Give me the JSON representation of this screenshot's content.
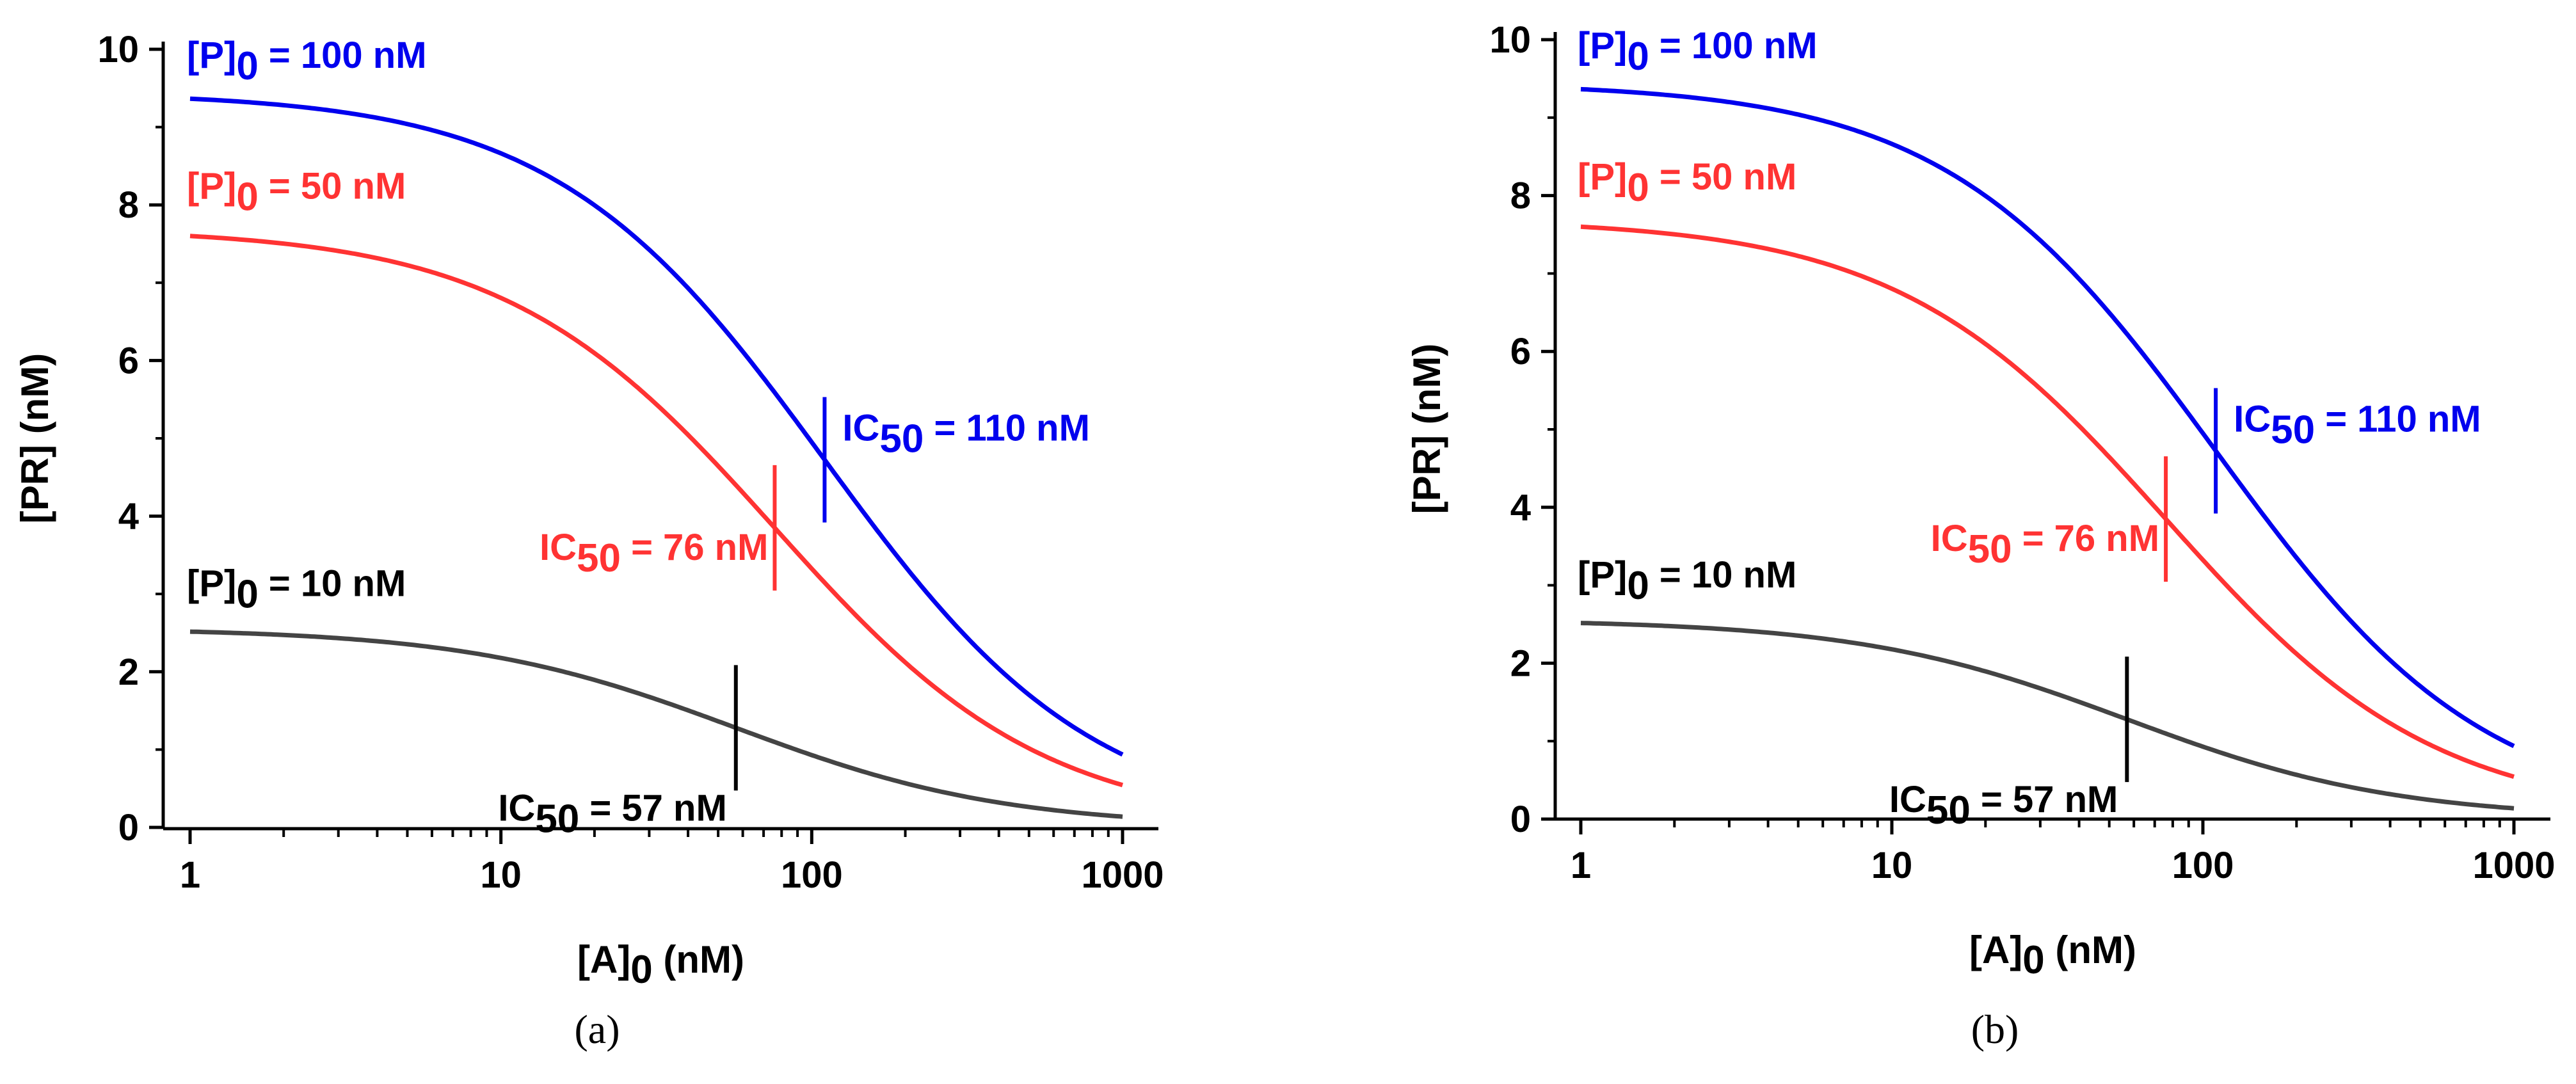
{
  "colors": {
    "p100": "#0000ee",
    "p50": "#ff3333",
    "p10": "#444444",
    "axis": "#000000"
  },
  "chart_data": [
    {
      "type": "line",
      "panel": "(a)",
      "xlabel": "[A]0 (nM)",
      "ylabel": "[PR] (nM)",
      "xscale": "log",
      "xlim": [
        0.85,
        1050
      ],
      "ylim": [
        0,
        10
      ],
      "xticks": [
        1,
        10,
        100,
        1000
      ],
      "xtick_labels": [
        "1",
        "10",
        "100",
        "1000"
      ],
      "yticks": [
        0,
        2,
        4,
        6,
        8,
        10
      ],
      "ytick_labels": [
        "0",
        "2",
        "4",
        "6",
        "8",
        "10"
      ],
      "series": [
        {
          "name": "[P]0 = 100 nM",
          "label_main": "[P]",
          "label_sub": "0",
          "label_rest": " = 100 nM",
          "color": "#0000ee",
          "top": 9.45,
          "ic50": 110,
          "ic50_label": "IC50 = 110 nM",
          "ic_main": "IC",
          "ic_sub": "50",
          "ic_rest": " = 110 nM",
          "label_anchor": "top-left",
          "ic_label_side": "right"
        },
        {
          "name": "[P]0 = 50 nM",
          "label_main": "[P]",
          "label_sub": "0",
          "label_rest": " = 50 nM",
          "color": "#ff3333",
          "top": 7.7,
          "ic50": 76,
          "ic50_label": "IC50 = 76 nM",
          "ic_main": "IC",
          "ic_sub": "50",
          "ic_rest": " = 76 nM",
          "label_anchor": "upper-left",
          "ic_label_side": "left"
        },
        {
          "name": "[P]0 = 10 nM",
          "label_main": "[P]",
          "label_sub": "0",
          "label_rest": " = 10 nM",
          "color": "#444444",
          "top": 2.56,
          "ic50": 57,
          "ic50_label": "IC50 = 57 nM",
          "ic_main": "IC",
          "ic_sub": "50",
          "ic_rest": " = 57 nM",
          "label_anchor": "lower-left",
          "ic_label_side": "left"
        }
      ]
    },
    {
      "type": "line",
      "panel": "(b)",
      "xlabel": "[A]0 (nM)",
      "ylabel": "[PR] (nM)",
      "xscale": "log",
      "xlim": [
        0.85,
        1050
      ],
      "ylim": [
        0,
        10
      ],
      "xticks": [
        1,
        10,
        100,
        1000
      ],
      "xtick_labels": [
        "1",
        "10",
        "100",
        "1000"
      ],
      "yticks": [
        0,
        2,
        4,
        6,
        8,
        10
      ],
      "ytick_labels": [
        "0",
        "2",
        "4",
        "6",
        "8",
        "10"
      ],
      "series": [
        {
          "name": "[P]0 = 100 nM",
          "label_main": "[P]",
          "label_sub": "0",
          "label_rest": " = 100 nM",
          "color": "#0000ee",
          "top": 9.45,
          "ic50": 110,
          "ic50_label": "IC50 = 110 nM",
          "ic_main": "IC",
          "ic_sub": "50",
          "ic_rest": " = 110 nM",
          "label_anchor": "top-left",
          "ic_label_side": "right"
        },
        {
          "name": "[P]0 = 50 nM",
          "label_main": "[P]",
          "label_sub": "0",
          "label_rest": " = 50 nM",
          "color": "#ff3333",
          "top": 7.7,
          "ic50": 76,
          "ic50_label": "IC50 = 76 nM",
          "ic_main": "IC",
          "ic_sub": "50",
          "ic_rest": " = 76 nM",
          "label_anchor": "upper-left",
          "ic_label_side": "left"
        },
        {
          "name": "[P]0 = 10 nM",
          "label_main": "[P]",
          "label_sub": "0",
          "label_rest": " = 10 nM",
          "color": "#444444",
          "top": 2.56,
          "ic50": 57,
          "ic50_label": "IC50 = 57 nM",
          "ic_main": "IC",
          "ic_sub": "50",
          "ic_rest": " = 57 nM",
          "label_anchor": "lower-left",
          "ic_label_side": "left"
        }
      ]
    }
  ]
}
